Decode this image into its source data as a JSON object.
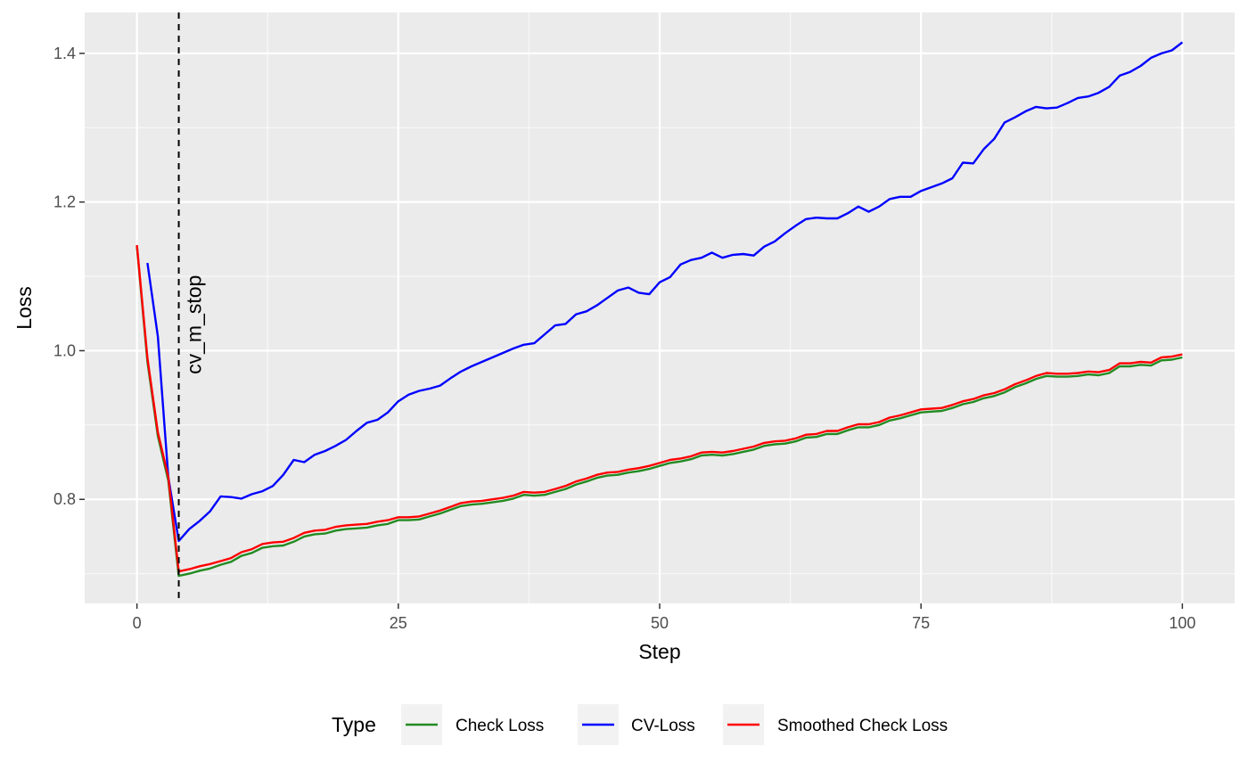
{
  "chart_data": {
    "type": "line",
    "title": "",
    "xlabel": "Step",
    "ylabel": "Loss",
    "xlim": [
      -5,
      105
    ],
    "ylim": [
      0.66,
      1.455
    ],
    "x_ticks": [
      0,
      25,
      50,
      75,
      100
    ],
    "y_ticks": [
      0.8,
      1.0,
      1.2,
      1.4
    ],
    "x_tick_labels": [
      "0",
      "25",
      "50",
      "75",
      "100"
    ],
    "y_tick_labels": [
      "0.8",
      "1.0",
      "1.2",
      "1.4"
    ],
    "grid": true,
    "legend": {
      "title": "Type",
      "position": "bottom"
    },
    "vline": {
      "x": 4,
      "label": "cv_m_stop",
      "style": "dashed"
    },
    "series": [
      {
        "name": "Check Loss",
        "color": "#228B22",
        "x": [
          0,
          1,
          2,
          3,
          4,
          5,
          6,
          7,
          8,
          9,
          10,
          11,
          12,
          13,
          14,
          15,
          16,
          17,
          18,
          19,
          20,
          21,
          22,
          23,
          24,
          25,
          26,
          27,
          28,
          29,
          30,
          31,
          32,
          33,
          34,
          35,
          36,
          37,
          38,
          39,
          40,
          41,
          42,
          43,
          44,
          45,
          46,
          47,
          48,
          49,
          50,
          51,
          52,
          53,
          54,
          55,
          56,
          57,
          58,
          59,
          60,
          61,
          62,
          63,
          64,
          65,
          66,
          67,
          68,
          69,
          70,
          71,
          72,
          73,
          74,
          75,
          76,
          77,
          78,
          79,
          80,
          81,
          82,
          83,
          84,
          85,
          86,
          87,
          88,
          89,
          90,
          91,
          92,
          93,
          94,
          95,
          96,
          97,
          98,
          99,
          100
        ],
        "values": [
          1.14,
          0.985,
          0.885,
          0.825,
          0.697,
          0.7,
          0.704,
          0.707,
          0.712,
          0.716,
          0.724,
          0.728,
          0.735,
          0.737,
          0.738,
          0.743,
          0.75,
          0.753,
          0.754,
          0.758,
          0.76,
          0.761,
          0.762,
          0.765,
          0.767,
          0.772,
          0.772,
          0.773,
          0.777,
          0.781,
          0.786,
          0.791,
          0.793,
          0.794,
          0.796,
          0.798,
          0.801,
          0.806,
          0.805,
          0.806,
          0.81,
          0.814,
          0.82,
          0.824,
          0.829,
          0.832,
          0.833,
          0.836,
          0.838,
          0.841,
          0.845,
          0.849,
          0.851,
          0.854,
          0.859,
          0.86,
          0.859,
          0.861,
          0.864,
          0.867,
          0.872,
          0.874,
          0.875,
          0.878,
          0.883,
          0.884,
          0.888,
          0.888,
          0.893,
          0.897,
          0.897,
          0.9,
          0.906,
          0.909,
          0.913,
          0.917,
          0.918,
          0.919,
          0.923,
          0.928,
          0.931,
          0.936,
          0.939,
          0.944,
          0.951,
          0.956,
          0.962,
          0.966,
          0.965,
          0.965,
          0.966,
          0.968,
          0.967,
          0.97,
          0.979,
          0.979,
          0.981,
          0.98,
          0.987,
          0.988,
          0.991
        ]
      },
      {
        "name": "CV-Loss",
        "color": "#0000FF",
        "x": [
          1,
          2,
          3,
          4,
          5,
          6,
          7,
          8,
          9,
          10,
          11,
          12,
          13,
          14,
          15,
          16,
          17,
          18,
          19,
          20,
          21,
          22,
          23,
          24,
          25,
          26,
          27,
          28,
          29,
          30,
          31,
          32,
          33,
          34,
          35,
          36,
          37,
          38,
          39,
          40,
          41,
          42,
          43,
          44,
          45,
          46,
          47,
          48,
          49,
          50,
          51,
          52,
          53,
          54,
          55,
          56,
          57,
          58,
          59,
          60,
          61,
          62,
          63,
          64,
          65,
          66,
          67,
          68,
          69,
          70,
          71,
          72,
          73,
          74,
          75,
          76,
          77,
          78,
          79,
          80,
          81,
          82,
          83,
          84,
          85,
          86,
          87,
          88,
          89,
          90,
          91,
          92,
          93,
          94,
          95,
          96,
          97,
          98,
          99,
          100
        ],
        "values": [
          1.118,
          1.019,
          0.83,
          0.744,
          0.76,
          0.771,
          0.784,
          0.804,
          0.803,
          0.801,
          0.807,
          0.811,
          0.818,
          0.833,
          0.853,
          0.85,
          0.86,
          0.865,
          0.872,
          0.88,
          0.892,
          0.903,
          0.907,
          0.917,
          0.932,
          0.941,
          0.946,
          0.949,
          0.953,
          0.963,
          0.972,
          0.979,
          0.985,
          0.991,
          0.997,
          1.003,
          1.008,
          1.01,
          1.022,
          1.034,
          1.036,
          1.049,
          1.053,
          1.061,
          1.071,
          1.081,
          1.085,
          1.078,
          1.076,
          1.092,
          1.099,
          1.116,
          1.122,
          1.125,
          1.132,
          1.125,
          1.129,
          1.13,
          1.128,
          1.14,
          1.147,
          1.158,
          1.168,
          1.177,
          1.179,
          1.178,
          1.178,
          1.185,
          1.194,
          1.187,
          1.194,
          1.204,
          1.207,
          1.207,
          1.215,
          1.22,
          1.225,
          1.232,
          1.253,
          1.252,
          1.271,
          1.285,
          1.307,
          1.314,
          1.322,
          1.328,
          1.326,
          1.327,
          1.333,
          1.34,
          1.342,
          1.347,
          1.355,
          1.37,
          1.375,
          1.383,
          1.394,
          1.4,
          1.404,
          1.415
        ]
      },
      {
        "name": "Smoothed Check Loss",
        "color": "#FF0000",
        "x": [
          0,
          1,
          2,
          3,
          4,
          5,
          6,
          7,
          8,
          9,
          10,
          11,
          12,
          13,
          14,
          15,
          16,
          17,
          18,
          19,
          20,
          21,
          22,
          23,
          24,
          25,
          26,
          27,
          28,
          29,
          30,
          31,
          32,
          33,
          34,
          35,
          36,
          37,
          38,
          39,
          40,
          41,
          42,
          43,
          44,
          45,
          46,
          47,
          48,
          49,
          50,
          51,
          52,
          53,
          54,
          55,
          56,
          57,
          58,
          59,
          60,
          61,
          62,
          63,
          64,
          65,
          66,
          67,
          68,
          69,
          70,
          71,
          72,
          73,
          74,
          75,
          76,
          77,
          78,
          79,
          80,
          81,
          82,
          83,
          84,
          85,
          86,
          87,
          88,
          89,
          90,
          91,
          92,
          93,
          94,
          95,
          96,
          97,
          98,
          99,
          100
        ],
        "values": [
          1.142,
          0.99,
          0.89,
          0.83,
          0.703,
          0.706,
          0.71,
          0.713,
          0.717,
          0.721,
          0.729,
          0.733,
          0.74,
          0.742,
          0.743,
          0.748,
          0.755,
          0.758,
          0.759,
          0.763,
          0.765,
          0.766,
          0.767,
          0.77,
          0.772,
          0.776,
          0.776,
          0.777,
          0.781,
          0.785,
          0.79,
          0.795,
          0.797,
          0.798,
          0.8,
          0.802,
          0.805,
          0.81,
          0.809,
          0.81,
          0.814,
          0.818,
          0.824,
          0.828,
          0.833,
          0.836,
          0.837,
          0.84,
          0.842,
          0.845,
          0.849,
          0.853,
          0.855,
          0.858,
          0.863,
          0.864,
          0.863,
          0.865,
          0.868,
          0.871,
          0.876,
          0.878,
          0.879,
          0.882,
          0.887,
          0.888,
          0.892,
          0.892,
          0.897,
          0.901,
          0.901,
          0.904,
          0.91,
          0.913,
          0.917,
          0.921,
          0.922,
          0.923,
          0.927,
          0.932,
          0.935,
          0.94,
          0.943,
          0.948,
          0.955,
          0.96,
          0.966,
          0.97,
          0.969,
          0.969,
          0.97,
          0.972,
          0.971,
          0.974,
          0.983,
          0.983,
          0.985,
          0.984,
          0.991,
          0.992,
          0.995
        ]
      }
    ]
  },
  "colors": {
    "panel_background": "#EBEBEB",
    "grid_major": "#FFFFFF",
    "vline": "#000000"
  }
}
